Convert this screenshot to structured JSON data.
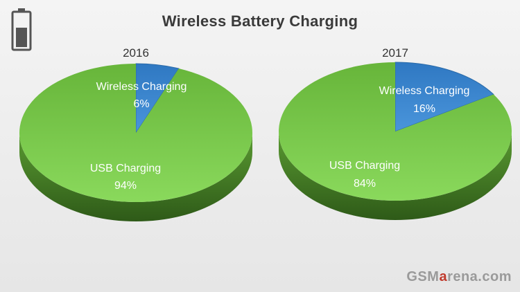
{
  "title": "Wireless Battery Charging",
  "watermark": {
    "part1": "GSM",
    "accent": "a",
    "part2": "rena.com"
  },
  "colors": {
    "usb": "#79c94a",
    "wireless": "#3d86cc",
    "text": "#ffffff",
    "year_text": "#333333"
  },
  "icons": {
    "battery": "battery-icon"
  },
  "chart_data": [
    {
      "type": "pie",
      "title": "2016",
      "slices": [
        {
          "label": "Wireless Charging",
          "value": 6,
          "value_label": "6%"
        },
        {
          "label": "USB Charging",
          "value": 94,
          "value_label": "94%"
        }
      ]
    },
    {
      "type": "pie",
      "title": "2017",
      "slices": [
        {
          "label": "Wireless Charging",
          "value": 16,
          "value_label": "16%"
        },
        {
          "label": "USB Charging",
          "value": 84,
          "value_label": "84%"
        }
      ]
    }
  ]
}
